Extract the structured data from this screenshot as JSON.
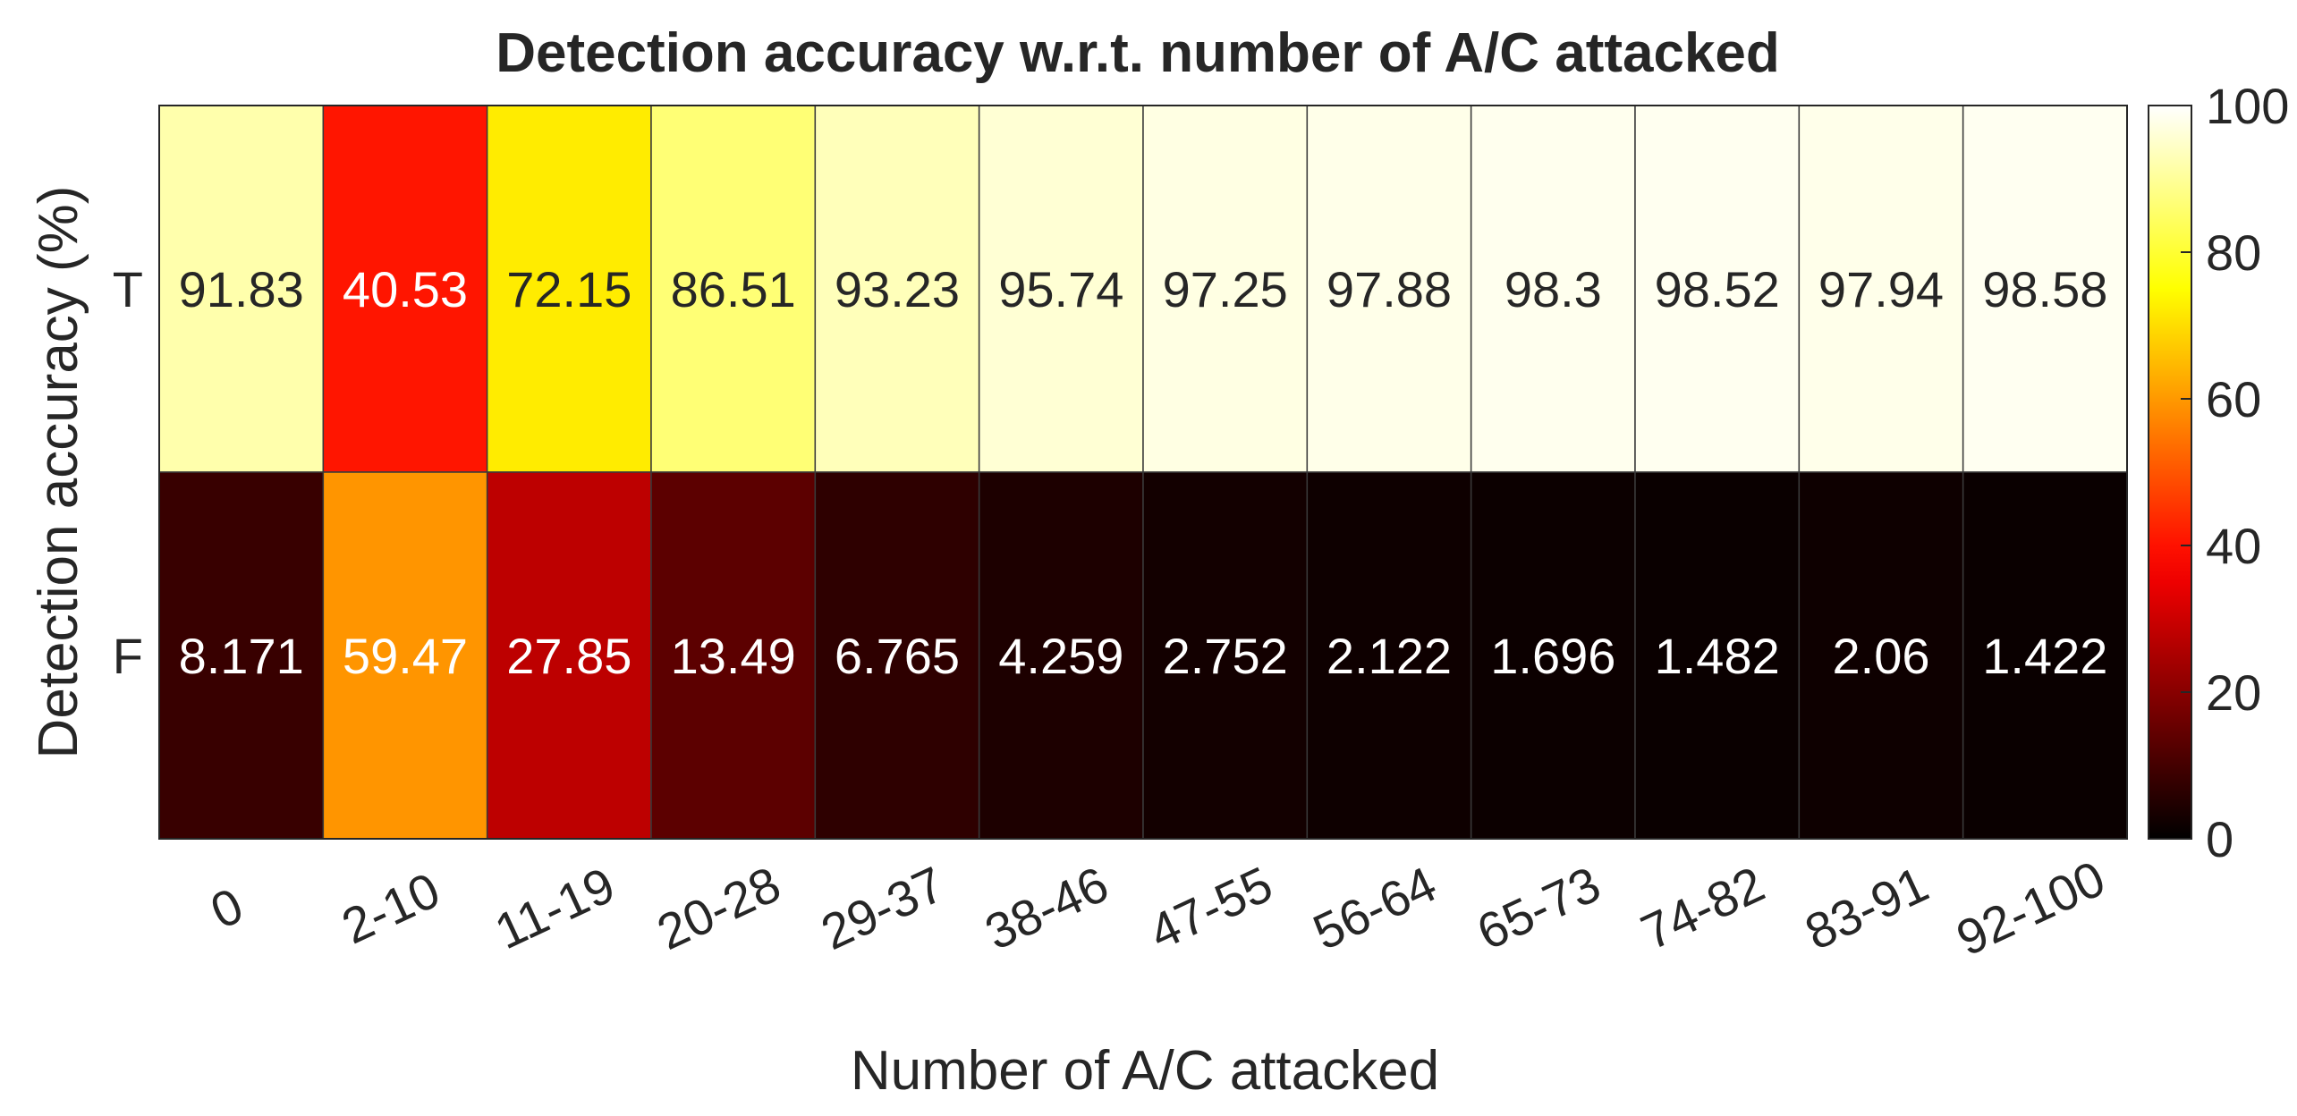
{
  "chart_data": {
    "type": "heatmap",
    "title": "Detection accuracy w.r.t. number of A/C attacked",
    "xlabel": "Number of A/C attacked",
    "ylabel": "Detection accuracy (%)",
    "x_categories": [
      "0",
      "2-10",
      "11-19",
      "20-28",
      "29-37",
      "38-46",
      "47-55",
      "56-64",
      "65-73",
      "74-82",
      "83-91",
      "92-100"
    ],
    "y_categories": [
      "T",
      "F"
    ],
    "values": [
      [
        91.83,
        40.53,
        72.15,
        86.51,
        93.23,
        95.74,
        97.25,
        97.88,
        98.3,
        98.52,
        97.94,
        98.58
      ],
      [
        8.171,
        59.47,
        27.85,
        13.49,
        6.765,
        4.259,
        2.752,
        2.122,
        1.696,
        1.482,
        2.06,
        1.422
      ]
    ],
    "value_labels": [
      [
        "91.83",
        "40.53",
        "72.15",
        "86.51",
        "93.23",
        "95.74",
        "97.25",
        "97.88",
        "98.3",
        "98.52",
        "97.94",
        "98.58"
      ],
      [
        "8.171",
        "59.47",
        "27.85",
        "13.49",
        "6.765",
        "4.259",
        "2.752",
        "2.122",
        "1.696",
        "1.482",
        "2.06",
        "1.422"
      ]
    ],
    "colormap": "hot",
    "color_range": [
      0,
      100
    ],
    "colorbar_ticks": [
      "0",
      "20",
      "40",
      "60",
      "80",
      "100"
    ],
    "colorbar_tick_values": [
      0,
      20,
      40,
      60,
      80,
      100
    ],
    "colorbar_position": "right",
    "grid": false
  }
}
